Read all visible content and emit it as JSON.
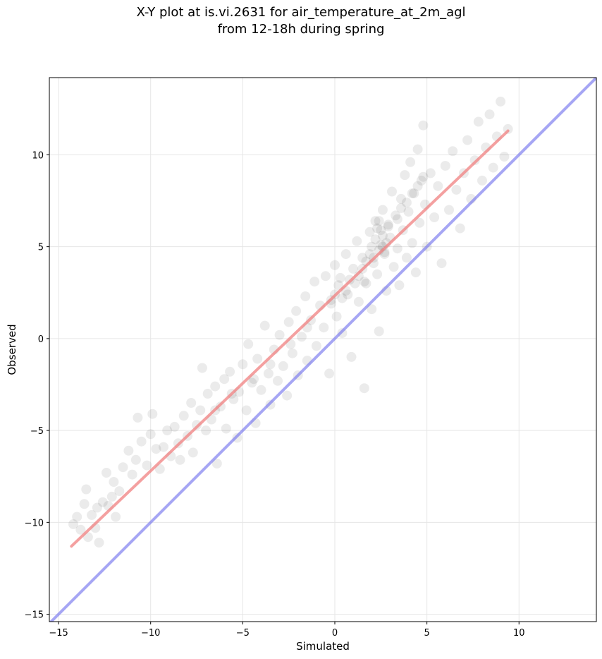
{
  "chart_data": {
    "type": "scatter",
    "title": "X-Y plot at is.vi.2631 for air_temperature_at_2m_agl",
    "subtitle": "from 12-18h during spring",
    "xlabel": "Simulated",
    "ylabel": "Observed",
    "xlim": [
      -15.5,
      14.2
    ],
    "ylim": [
      -15.4,
      14.2
    ],
    "xticks": [
      -15,
      -10,
      -5,
      0,
      5,
      10
    ],
    "xtick_labels": [
      "−15",
      "−10",
      "−5",
      "0",
      "5",
      "10"
    ],
    "yticks": [
      -15,
      -10,
      -5,
      0,
      5,
      10
    ],
    "ytick_labels": [
      "−15",
      "−10",
      "−5",
      "0",
      "5",
      "10"
    ],
    "grid": true,
    "legend": "none",
    "point_color": "#000000",
    "point_alpha": 0.08,
    "points": [
      [
        -14.2,
        -10.1
      ],
      [
        -14.0,
        -9.7
      ],
      [
        -13.8,
        -10.4
      ],
      [
        -13.6,
        -9.0
      ],
      [
        -13.5,
        -8.2
      ],
      [
        -13.4,
        -10.8
      ],
      [
        -13.2,
        -9.6
      ],
      [
        -13.0,
        -10.3
      ],
      [
        -12.9,
        -9.2
      ],
      [
        -12.8,
        -11.1
      ],
      [
        -12.6,
        -8.9
      ],
      [
        -12.4,
        -7.3
      ],
      [
        -12.3,
        -9.1
      ],
      [
        -12.1,
        -8.6
      ],
      [
        -12.0,
        -7.8
      ],
      [
        -11.9,
        -9.7
      ],
      [
        -11.7,
        -8.3
      ],
      [
        -11.5,
        -7.0
      ],
      [
        -11.2,
        -6.1
      ],
      [
        -11.0,
        -7.4
      ],
      [
        -10.8,
        -6.6
      ],
      [
        -10.7,
        -4.3
      ],
      [
        -10.5,
        -5.6
      ],
      [
        -10.2,
        -6.9
      ],
      [
        -10.0,
        -5.2
      ],
      [
        -9.9,
        -4.1
      ],
      [
        -9.7,
        -6.0
      ],
      [
        -9.5,
        -7.1
      ],
      [
        -9.3,
        -5.9
      ],
      [
        -9.1,
        -5.0
      ],
      [
        -8.9,
        -6.4
      ],
      [
        -8.7,
        -4.8
      ],
      [
        -8.5,
        -5.7
      ],
      [
        -8.4,
        -6.6
      ],
      [
        -8.2,
        -4.2
      ],
      [
        -8.0,
        -5.3
      ],
      [
        -7.8,
        -3.5
      ],
      [
        -7.7,
        -6.2
      ],
      [
        -7.5,
        -4.7
      ],
      [
        -7.3,
        -3.9
      ],
      [
        -7.2,
        -1.6
      ],
      [
        -7.0,
        -5.0
      ],
      [
        -6.9,
        -3.0
      ],
      [
        -6.7,
        -4.4
      ],
      [
        -6.5,
        -2.6
      ],
      [
        -6.4,
        -6.8
      ],
      [
        -6.2,
        -3.7
      ],
      [
        -6.0,
        -2.2
      ],
      [
        -5.9,
        -4.9
      ],
      [
        -5.7,
        -1.8
      ],
      [
        -5.5,
        -3.3
      ],
      [
        -5.3,
        -5.4
      ],
      [
        -5.2,
        -2.9
      ],
      [
        -5.0,
        -1.4
      ],
      [
        -4.8,
        -3.9
      ],
      [
        -4.7,
        -0.3
      ],
      [
        -4.5,
        -2.4
      ],
      [
        -4.3,
        -4.6
      ],
      [
        -4.2,
        -1.1
      ],
      [
        -4.0,
        -2.8
      ],
      [
        -3.8,
        0.7
      ],
      [
        -3.6,
        -1.9
      ],
      [
        -3.5,
        -3.6
      ],
      [
        -3.3,
        -0.6
      ],
      [
        -3.1,
        -2.3
      ],
      [
        -3.0,
        0.2
      ],
      [
        -2.8,
        -1.5
      ],
      [
        -2.6,
        -3.1
      ],
      [
        -2.5,
        0.9
      ],
      [
        -2.3,
        -0.8
      ],
      [
        -2.1,
        1.5
      ],
      [
        -2.0,
        -2.0
      ],
      [
        -1.8,
        0.1
      ],
      [
        -1.6,
        2.3
      ],
      [
        -1.5,
        -1.2
      ],
      [
        -1.3,
        1.0
      ],
      [
        -1.1,
        3.1
      ],
      [
        -1.0,
        -0.4
      ],
      [
        -0.8,
        1.8
      ],
      [
        -0.6,
        0.6
      ],
      [
        -0.5,
        3.4
      ],
      [
        -0.3,
        -1.9
      ],
      [
        -0.2,
        2.1
      ],
      [
        0.0,
        4.0
      ],
      [
        0.1,
        1.2
      ],
      [
        0.3,
        3.3
      ],
      [
        0.4,
        0.3
      ],
      [
        0.6,
        4.6
      ],
      [
        0.7,
        2.4
      ],
      [
        0.9,
        -1.0
      ],
      [
        1.0,
        3.8
      ],
      [
        1.2,
        5.3
      ],
      [
        1.3,
        2.0
      ],
      [
        1.5,
        4.4
      ],
      [
        1.6,
        -2.7
      ],
      [
        1.7,
        3.0
      ],
      [
        1.9,
        5.8
      ],
      [
        2.0,
        1.6
      ],
      [
        2.1,
        4.1
      ],
      [
        2.2,
        6.4
      ],
      [
        2.3,
        3.5
      ],
      [
        2.4,
        0.4
      ],
      [
        2.5,
        5.1
      ],
      [
        2.6,
        7.0
      ],
      [
        2.7,
        4.7
      ],
      [
        2.8,
        2.6
      ],
      [
        2.9,
        6.1
      ],
      [
        3.0,
        5.5
      ],
      [
        3.1,
        8.0
      ],
      [
        3.2,
        3.9
      ],
      [
        3.3,
        6.7
      ],
      [
        3.4,
        4.9
      ],
      [
        3.5,
        2.9
      ],
      [
        3.6,
        7.6
      ],
      [
        3.7,
        5.9
      ],
      [
        3.8,
        8.9
      ],
      [
        3.9,
        4.4
      ],
      [
        4.0,
        6.9
      ],
      [
        4.1,
        9.6
      ],
      [
        4.2,
        5.2
      ],
      [
        4.3,
        7.9
      ],
      [
        4.4,
        3.6
      ],
      [
        4.5,
        10.3
      ],
      [
        4.6,
        6.3
      ],
      [
        4.7,
        8.6
      ],
      [
        4.8,
        11.6
      ],
      [
        4.9,
        7.3
      ],
      [
        5.0,
        5.0
      ],
      [
        5.2,
        9.0
      ],
      [
        5.4,
        6.6
      ],
      [
        5.6,
        8.3
      ],
      [
        5.8,
        4.1
      ],
      [
        6.0,
        9.4
      ],
      [
        6.2,
        7.0
      ],
      [
        6.4,
        10.2
      ],
      [
        6.6,
        8.1
      ],
      [
        6.8,
        6.0
      ],
      [
        7.0,
        9.0
      ],
      [
        7.2,
        10.8
      ],
      [
        7.4,
        7.6
      ],
      [
        7.6,
        9.7
      ],
      [
        7.8,
        11.8
      ],
      [
        8.0,
        8.6
      ],
      [
        8.2,
        10.4
      ],
      [
        8.4,
        12.2
      ],
      [
        8.6,
        9.3
      ],
      [
        8.8,
        11.0
      ],
      [
        9.0,
        12.9
      ],
      [
        9.2,
        9.9
      ],
      [
        9.4,
        11.4
      ]
    ],
    "density_points": [
      [
        2.0,
        5.0
      ],
      [
        2.2,
        5.4
      ],
      [
        2.4,
        4.8
      ],
      [
        2.6,
        5.6
      ],
      [
        2.8,
        5.2
      ],
      [
        2.3,
        6.0
      ],
      [
        2.5,
        5.9
      ],
      [
        2.7,
        4.6
      ],
      [
        2.1,
        4.4
      ],
      [
        2.9,
        6.2
      ],
      [
        2.4,
        6.4
      ],
      [
        2.6,
        5.0
      ],
      [
        1.5,
        3.8
      ],
      [
        1.7,
        4.2
      ],
      [
        1.3,
        3.4
      ],
      [
        1.6,
        3.1
      ],
      [
        1.9,
        4.6
      ],
      [
        1.1,
        3.0
      ],
      [
        0.6,
        2.6
      ],
      [
        0.8,
        3.2
      ],
      [
        0.4,
        2.2
      ],
      [
        0.2,
        2.9
      ],
      [
        -0.2,
        1.9
      ],
      [
        0.0,
        2.4
      ],
      [
        3.4,
        6.5
      ],
      [
        3.6,
        7.1
      ],
      [
        3.9,
        7.4
      ],
      [
        4.2,
        7.9
      ],
      [
        4.5,
        8.3
      ],
      [
        4.8,
        8.8
      ],
      [
        -1.5,
        0.6
      ],
      [
        -2.4,
        -0.3
      ],
      [
        -3.5,
        -1.4
      ],
      [
        -4.4,
        -2.2
      ],
      [
        -5.6,
        -3.0
      ],
      [
        -6.5,
        -3.9
      ]
    ],
    "fit_line": {
      "color": "#f08080",
      "x": [
        -14.3,
        9.4
      ],
      "y": [
        -11.3,
        11.3
      ]
    },
    "identity_line": {
      "color": "#7777ee",
      "x": [
        -15.5,
        14.2
      ],
      "y": [
        -15.5,
        14.2
      ]
    }
  }
}
